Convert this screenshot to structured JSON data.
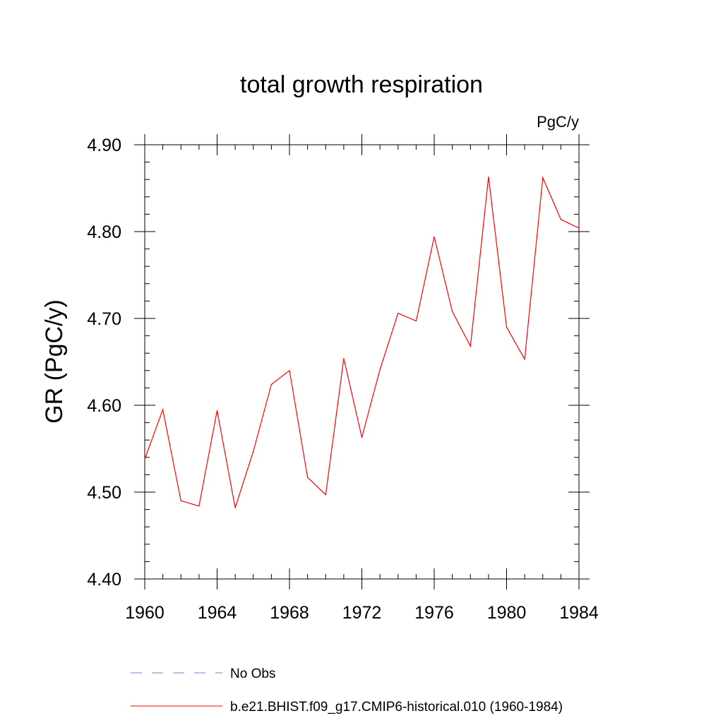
{
  "chart_data": {
    "type": "line",
    "title": "total growth respiration",
    "units_label": "PgC/y",
    "ylabel": "GR  (PgC/y)",
    "xlabel": "",
    "xlim": [
      1960,
      1984
    ],
    "ylim": [
      4.4,
      4.9
    ],
    "x_ticks": [
      "1960",
      "1964",
      "1968",
      "1972",
      "1976",
      "1980",
      "1984"
    ],
    "y_ticks": [
      "4.40",
      "4.50",
      "4.60",
      "4.70",
      "4.80",
      "4.90"
    ],
    "grid": false,
    "legend_position": "bottom",
    "series": [
      {
        "name": "b.e21.BHIST.f09_g17.CMIP6-historical.010 (1960-1984)",
        "color": "#ff0000",
        "style": "solid",
        "x": [
          1960,
          1961,
          1962,
          1963,
          1964,
          1965,
          1966,
          1967,
          1968,
          1969,
          1970,
          1971,
          1972,
          1973,
          1974,
          1975,
          1976,
          1977,
          1978,
          1979,
          1980,
          1981,
          1982,
          1983,
          1984
        ],
        "values": [
          4.538,
          4.595,
          4.49,
          4.484,
          4.594,
          4.482,
          4.547,
          4.624,
          4.64,
          4.517,
          4.497,
          4.654,
          4.563,
          4.641,
          4.706,
          4.697,
          4.794,
          4.708,
          4.668,
          4.863,
          4.69,
          4.653,
          4.862,
          4.814,
          4.804
        ]
      }
    ],
    "legend": [
      {
        "label": "No Obs",
        "color": "#7b7bd0",
        "style": "dashed"
      },
      {
        "label": "b.e21.BHIST.f09_g17.CMIP6-historical.010 (1960-1984)",
        "color": "#ff0000",
        "style": "solid"
      }
    ]
  }
}
